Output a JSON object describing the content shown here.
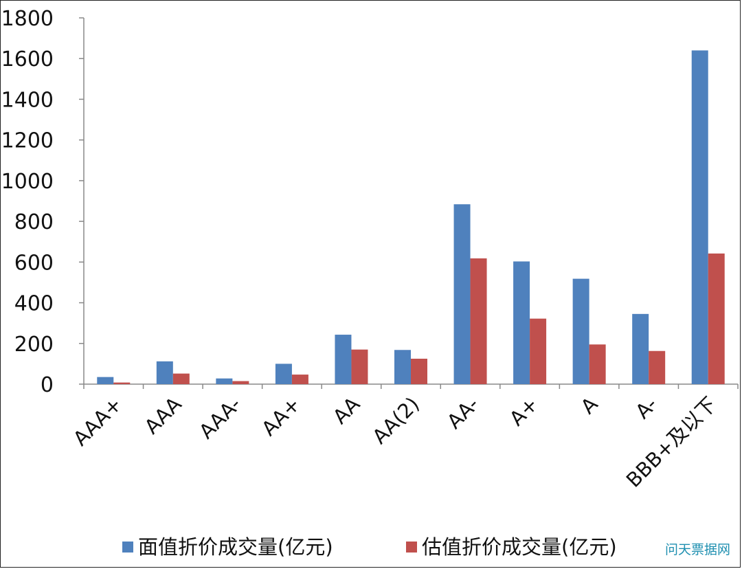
{
  "chart_data": {
    "type": "bar",
    "categories": [
      "AAA+",
      "AAA",
      "AAA-",
      "AA+",
      "AA",
      "AA(2)",
      "AA-",
      "A+",
      "A",
      "A-",
      "BBB+及以下"
    ],
    "series": [
      {
        "name": "面值折价成交量(亿元)",
        "color": "#4f81bd",
        "values": [
          35,
          112,
          28,
          100,
          243,
          168,
          884,
          603,
          518,
          345,
          1640
        ]
      },
      {
        "name": "估值折价成交量(亿元)",
        "color": "#c0504d",
        "values": [
          8,
          52,
          15,
          47,
          170,
          125,
          618,
          322,
          195,
          163,
          642
        ]
      }
    ],
    "ylim": [
      0,
      1800
    ],
    "yticks": [
      0,
      200,
      400,
      600,
      800,
      1000,
      1200,
      1400,
      1600,
      1800
    ],
    "legend_position": "bottom",
    "grid": false
  },
  "watermark": "问天票据网"
}
